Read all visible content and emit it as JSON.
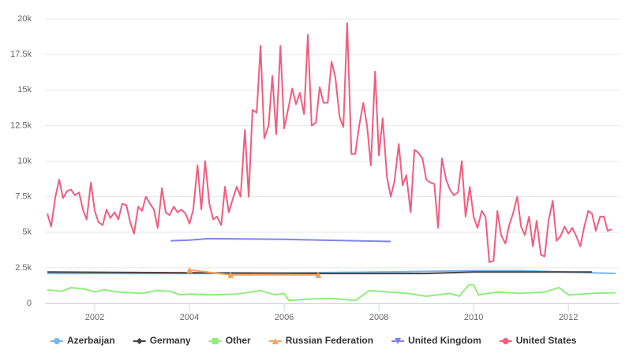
{
  "chart_data": {
    "type": "line",
    "xlim": [
      2000.95,
      2013.08
    ],
    "xticks": [
      2002,
      2004,
      2006,
      2008,
      2010,
      2012
    ],
    "ylim": [
      0,
      20000
    ],
    "yticks": [
      0,
      {
        "value": 2500,
        "label": "2.5k"
      },
      {
        "value": 5000,
        "label": "5k"
      },
      {
        "value": 7500,
        "label": "7.5k"
      },
      {
        "value": 10000,
        "label": "10k"
      },
      {
        "value": 12500,
        "label": "12.5k"
      },
      {
        "value": 15000,
        "label": "15k"
      },
      {
        "value": 17500,
        "label": "17.5k"
      },
      {
        "value": 20000,
        "label": "20k"
      }
    ],
    "grid": true,
    "legend": "bottom",
    "series": [
      {
        "name": "Azerbaijan",
        "color": "#7cb5ec",
        "marker": "circle",
        "x": [
          2001,
          2005,
          2008,
          2010,
          2011,
          2013
        ],
        "values": [
          2100,
          2100,
          2200,
          2300,
          2300,
          2100
        ]
      },
      {
        "name": "Germany",
        "color": "#434348",
        "marker": "diamond",
        "x": [
          2001,
          2004,
          2007,
          2009,
          2010,
          2012.5
        ],
        "values": [
          2200,
          2150,
          2100,
          2100,
          2200,
          2200
        ]
      },
      {
        "name": "Other",
        "color": "#90ed7d",
        "marker": "square",
        "x": [
          2001,
          2001.3,
          2001.5,
          2001.8,
          2002,
          2002.2,
          2002.5,
          2003,
          2003.3,
          2003.6,
          2003.8,
          2004,
          2004.5,
          2005,
          2005.5,
          2005.8,
          2006,
          2006.1,
          2006.5,
          2007,
          2007.5,
          2007.8,
          2008.2,
          2008.6,
          2009,
          2009.5,
          2009.7,
          2009.9,
          2010,
          2010.1,
          2010.5,
          2011,
          2011.5,
          2011.8,
          2012,
          2012.5,
          2013
        ],
        "values": [
          950,
          850,
          1100,
          1000,
          800,
          950,
          800,
          700,
          900,
          850,
          600,
          650,
          600,
          650,
          900,
          600,
          700,
          200,
          300,
          350,
          200,
          900,
          800,
          700,
          500,
          700,
          500,
          1300,
          1300,
          600,
          800,
          700,
          800,
          1100,
          600,
          700,
          750
        ]
      },
      {
        "name": "Russian Federation",
        "color": "#f7a35c",
        "marker": "triangle",
        "x": [
          2004,
          2004.87,
          2006.72
        ],
        "values": [
          2350,
          2000,
          2000
        ]
      },
      {
        "name": "United Kingdom",
        "color": "#8085e9",
        "marker": "triangle-down",
        "x": [
          2003.6,
          2004,
          2004.4,
          2006,
          2008.25
        ],
        "values": [
          4400,
          4450,
          4550,
          4500,
          4350
        ]
      },
      {
        "name": "United States",
        "color": "#f15c80",
        "marker": "circle",
        "x": [
          2001,
          2001.08,
          2001.17,
          2001.25,
          2001.33,
          2001.42,
          2001.5,
          2001.58,
          2001.67,
          2001.75,
          2001.83,
          2001.92,
          2002,
          2002.08,
          2002.17,
          2002.25,
          2002.33,
          2002.42,
          2002.5,
          2002.58,
          2002.67,
          2002.75,
          2002.83,
          2002.92,
          2003,
          2003.08,
          2003.17,
          2003.25,
          2003.33,
          2003.42,
          2003.5,
          2003.58,
          2003.67,
          2003.75,
          2003.83,
          2003.92,
          2004,
          2004.08,
          2004.17,
          2004.25,
          2004.33,
          2004.42,
          2004.5,
          2004.58,
          2004.67,
          2004.75,
          2004.83,
          2004.92,
          2005,
          2005.08,
          2005.17,
          2005.25,
          2005.33,
          2005.42,
          2005.5,
          2005.58,
          2005.67,
          2005.75,
          2005.83,
          2005.92,
          2006,
          2006.08,
          2006.17,
          2006.25,
          2006.33,
          2006.42,
          2006.5,
          2006.58,
          2006.67,
          2006.75,
          2006.83,
          2006.92,
          2007,
          2007.08,
          2007.17,
          2007.25,
          2007.33,
          2007.42,
          2007.5,
          2007.58,
          2007.67,
          2007.75,
          2007.83,
          2007.92,
          2008,
          2008.08,
          2008.17,
          2008.25,
          2008.33,
          2008.42,
          2008.5,
          2008.58,
          2008.67,
          2008.75,
          2008.83,
          2008.92,
          2009,
          2009.08,
          2009.17,
          2009.25,
          2009.33,
          2009.42,
          2009.5,
          2009.58,
          2009.67,
          2009.75,
          2009.83,
          2009.92,
          2010,
          2010.08,
          2010.17,
          2010.25,
          2010.33,
          2010.42,
          2010.5,
          2010.58,
          2010.67,
          2010.75,
          2010.83,
          2010.92,
          2011,
          2011.08,
          2011.17,
          2011.25,
          2011.33,
          2011.42,
          2011.5,
          2011.58,
          2011.67,
          2011.75,
          2011.83,
          2011.92,
          2012,
          2012.08,
          2012.17,
          2012.25,
          2012.33,
          2012.42,
          2012.5,
          2012.58,
          2012.67,
          2012.75,
          2012.83,
          2012.92
        ],
        "values": [
          6300,
          5400,
          7500,
          8700,
          7400,
          7900,
          8000,
          7600,
          7800,
          6600,
          5900,
          8500,
          6500,
          5700,
          5500,
          6600,
          6000,
          6400,
          5900,
          7000,
          6900,
          5700,
          4900,
          6800,
          6500,
          7500,
          7000,
          6600,
          5300,
          8100,
          6400,
          6200,
          6800,
          6400,
          6600,
          6300,
          5600,
          6600,
          9700,
          6600,
          10000,
          7000,
          5900,
          6100,
          5500,
          8200,
          6400,
          7400,
          8200,
          7500,
          12200,
          7500,
          13600,
          13400,
          18100,
          11600,
          12500,
          16000,
          11900,
          18100,
          12300,
          13600,
          15100,
          14000,
          14800,
          13300,
          18900,
          12500,
          12700,
          15200,
          14100,
          14100,
          17000,
          15900,
          13100,
          12400,
          19700,
          10500,
          10500,
          12400,
          14100,
          12500,
          9700,
          16300,
          10400,
          13000,
          8900,
          7500,
          8600,
          11200,
          8300,
          9000,
          6400,
          10800,
          10600,
          10200,
          8700,
          8500,
          8400,
          5300,
          10200,
          8700,
          8000,
          7600,
          7800,
          10000,
          6100,
          8200,
          6100,
          5300,
          6500,
          6100,
          2900,
          3000,
          6500,
          4800,
          4200,
          5500,
          6300,
          7500,
          5400,
          4800,
          6100,
          4000,
          5800,
          3400,
          3300,
          5800,
          7200,
          4400,
          4700,
          5400,
          4900,
          5300,
          4700,
          4000,
          5300,
          6500,
          6300,
          5100,
          6100,
          6100,
          5100,
          5200
        ]
      }
    ]
  }
}
